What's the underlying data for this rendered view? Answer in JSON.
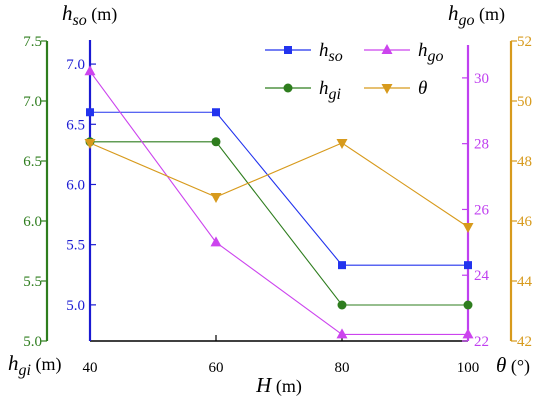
{
  "chart_data": {
    "type": "line",
    "x": [
      40,
      60,
      80,
      100
    ],
    "xlim": [
      40,
      100
    ],
    "xticks": [
      "40",
      "60",
      "80",
      "100"
    ],
    "xlabel": {
      "var": "H",
      "unit": " (m)"
    },
    "axes": {
      "hso": {
        "label": {
          "var": "h",
          "sub": "so",
          "unit": " (m)"
        },
        "lim": [
          4.7,
          7.2
        ],
        "ticks": [
          "5.0",
          "5.5",
          "6.0",
          "6.5",
          "7.0"
        ],
        "color": "#1a1ad2"
      },
      "hgi": {
        "label": {
          "var": "h",
          "sub": "gi",
          "unit": " (m)"
        },
        "lim": [
          5.0,
          7.5
        ],
        "ticks": [
          "5.0",
          "5.5",
          "6.0",
          "6.5",
          "7.0",
          "7.5"
        ],
        "color": "#2e7d1e"
      },
      "hgo": {
        "label": {
          "var": "h",
          "sub": "go",
          "unit": " (m)"
        },
        "lim": [
          22,
          31
        ],
        "ticks": [
          "22",
          "24",
          "26",
          "28",
          "30"
        ],
        "color": "#c040f0"
      },
      "theta": {
        "label": {
          "var": "θ",
          "sub": "",
          "unit": " (°)"
        },
        "lim": [
          42,
          52
        ],
        "ticks": [
          "42",
          "44",
          "46",
          "48",
          "50",
          "52"
        ],
        "color": "#d79a1c"
      }
    },
    "series": [
      {
        "name": {
          "var": "h",
          "sub": "so"
        },
        "axis": "hso",
        "values": [
          6.6,
          6.6,
          5.33,
          5.33
        ],
        "color": "#2233ee",
        "marker": "square"
      },
      {
        "name": {
          "var": "h",
          "sub": "gi"
        },
        "axis": "hgi",
        "values": [
          6.66,
          6.66,
          5.3,
          5.3
        ],
        "color": "#2e7d1e",
        "marker": "circle"
      },
      {
        "name": {
          "var": "h",
          "sub": "go"
        },
        "axis": "hgo",
        "values": [
          30.2,
          25.0,
          22.2,
          22.2
        ],
        "color": "#cc44ee",
        "marker": "triangle-up"
      },
      {
        "name": {
          "var": "θ",
          "sub": ""
        },
        "axis": "theta",
        "values": [
          48.6,
          46.8,
          48.6,
          45.8
        ],
        "color": "#d79a1c",
        "marker": "triangle-down"
      }
    ],
    "grid": false,
    "legend_position": "top-right"
  }
}
